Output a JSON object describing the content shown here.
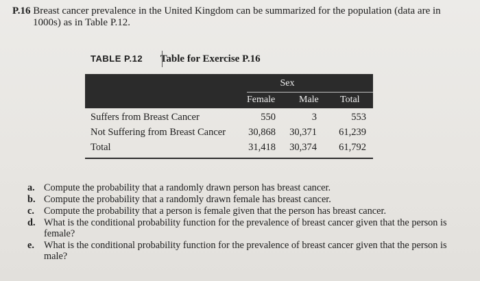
{
  "problem": {
    "number": "P.16",
    "text_line1": "Breast cancer prevalence in the United Kingdom can be summarized for the population (data are in",
    "text_line2": "1000s) as in Table P.12."
  },
  "table": {
    "label": "TABLE P.12",
    "title": "Table for Exercise P.16",
    "group_header": "Sex",
    "columns": [
      "Female",
      "Male",
      "Total"
    ],
    "rows": [
      {
        "label": "Suffers from Breast Cancer",
        "values": [
          "550",
          "3",
          "553"
        ]
      },
      {
        "label": "Not Suffering from Breast Cancer",
        "values": [
          "30,868",
          "30,371",
          "61,239"
        ]
      },
      {
        "label": "Total",
        "values": [
          "31,418",
          "30,374",
          "61,792"
        ]
      }
    ]
  },
  "questions": [
    {
      "letter": "a.",
      "text": "Compute the probability that a randomly drawn person has breast cancer."
    },
    {
      "letter": "b.",
      "text": "Compute the probability that a randomly drawn female has breast cancer."
    },
    {
      "letter": "c.",
      "text": "Compute the probability that a person is female given that the person has breast cancer."
    },
    {
      "letter": "d.",
      "text": "What is the conditional probability function for the prevalence of breast cancer given that the person is female?"
    },
    {
      "letter": "e.",
      "text": "What is the conditional probability function for the prevalence of breast cancer given that the person is male?"
    }
  ]
}
